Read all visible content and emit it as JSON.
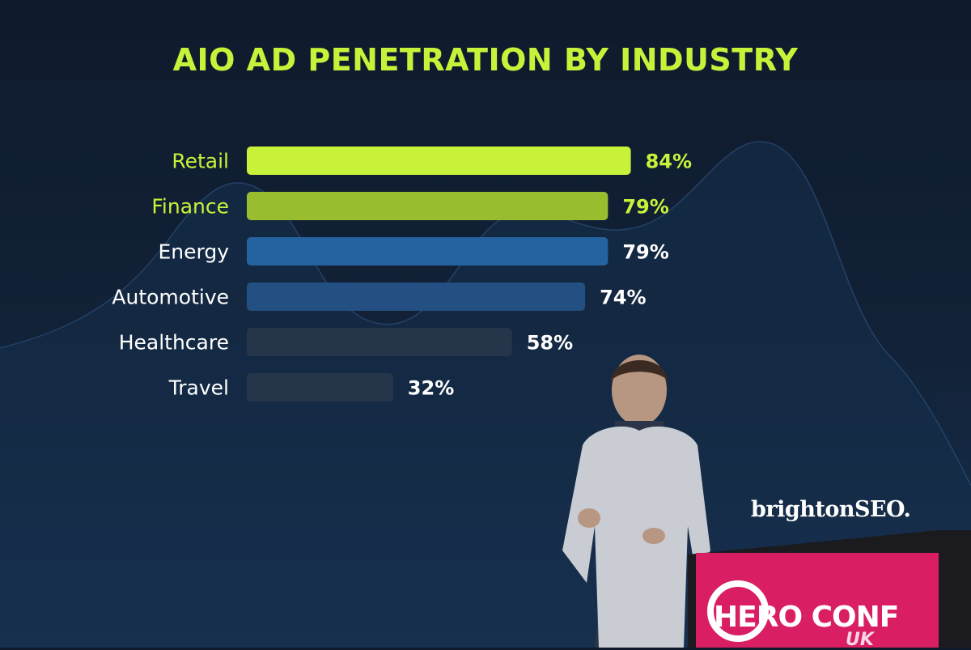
{
  "slide": {
    "title": "AIO AD PENETRATION BY INDUSTRY",
    "brand": "brightonSEO.",
    "sign_text": "HERO CONF",
    "sign_sub": "UK"
  },
  "colors": {
    "accent": "#c8f23a",
    "accent_dim": "#98bd2e",
    "blue": "#2563a0",
    "blue_dark": "#234f82",
    "muted": "#26364a",
    "text": "#ffffff"
  },
  "chart_data": {
    "type": "bar",
    "orientation": "horizontal",
    "title": "AIO AD PENETRATION BY INDUSTRY",
    "categories": [
      "Retail",
      "Finance",
      "Energy",
      "Automotive",
      "Healthcare",
      "Travel"
    ],
    "values": [
      84,
      79,
      79,
      74,
      58,
      32
    ],
    "value_labels": [
      "84%",
      "79%",
      "79%",
      "74%",
      "58%",
      "32%"
    ],
    "bar_colors": [
      "#c8f23a",
      "#98bd2e",
      "#2563a0",
      "#234f82",
      "#26364a",
      "#26364a"
    ],
    "label_colors": [
      "#c8f23a",
      "#c8f23a",
      "#ffffff",
      "#ffffff",
      "#ffffff",
      "#ffffff"
    ],
    "value_label_colors": [
      "#c8f23a",
      "#c8f23a",
      "#ffffff",
      "#ffffff",
      "#ffffff",
      "#ffffff"
    ],
    "xlim": [
      0,
      100
    ],
    "grid": false,
    "legend": "none"
  }
}
